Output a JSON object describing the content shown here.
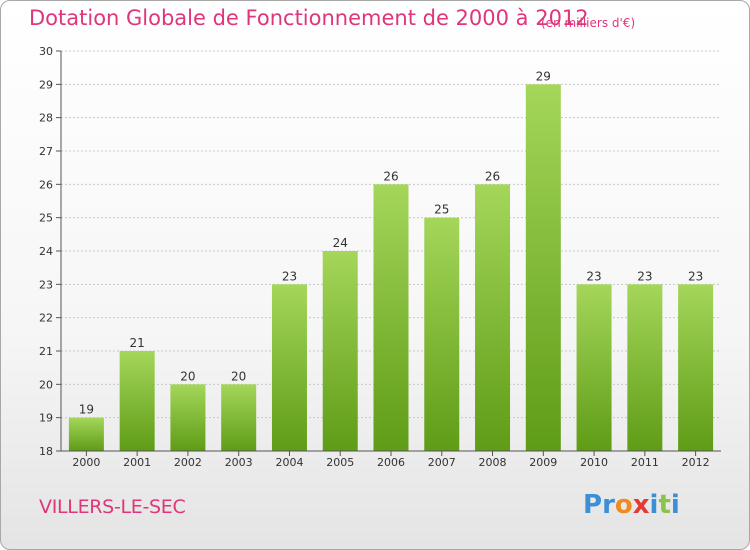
{
  "header": {
    "title": "Dotation Globale de Fonctionnement de 2000 à 2012",
    "subtitle": "(en milliers d'€)"
  },
  "footer": {
    "commune": "VILLERS-LE-SEC",
    "logo": {
      "text": "Proxiti",
      "letter_colors": [
        "#3a8fd6",
        "#3a8fd6",
        "#f08a1e",
        "#e53935",
        "#3a8fd6",
        "#8bc34a",
        "#3a8fd6"
      ]
    }
  },
  "colors": {
    "title": "#e0357a",
    "bar_top": "#a4d65a",
    "bar_bottom": "#5f9c16",
    "grid": "#c8c8c8"
  },
  "chart_data": {
    "type": "bar",
    "title": "Dotation Globale de Fonctionnement de 2000 à 2012",
    "subtitle": "(en milliers d'€)",
    "categories": [
      "2000",
      "2001",
      "2002",
      "2003",
      "2004",
      "2005",
      "2006",
      "2007",
      "2008",
      "2009",
      "2010",
      "2011",
      "2012"
    ],
    "values": [
      19,
      21,
      20,
      20,
      23,
      24,
      26,
      25,
      26,
      29,
      23,
      23,
      23
    ],
    "ylim": [
      18,
      30
    ],
    "yticks": [
      18,
      19,
      20,
      21,
      22,
      23,
      24,
      25,
      26,
      27,
      28,
      29,
      30
    ],
    "xlabel": "",
    "ylabel": "",
    "grid": true,
    "legend": "none"
  }
}
